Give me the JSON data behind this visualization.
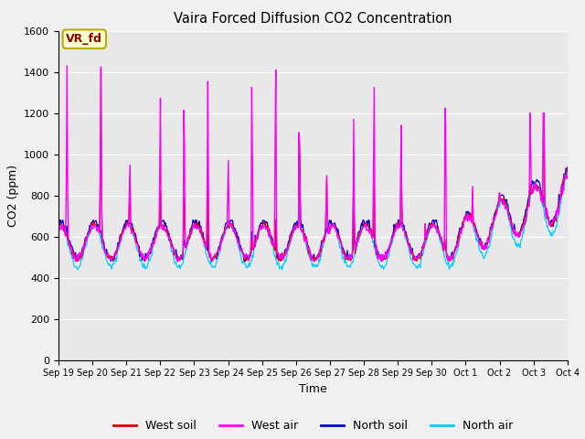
{
  "title": "Vaira Forced Diffusion CO2 Concentration",
  "xlabel": "Time",
  "ylabel": "CO2 (ppm)",
  "ylim": [
    0,
    1600
  ],
  "yticks": [
    0,
    200,
    400,
    600,
    800,
    1000,
    1200,
    1400,
    1600
  ],
  "legend_label": "VR_fd",
  "legend_bg": "#ffffcc",
  "legend_border": "#bbaa00",
  "west_soil_color": "#dd0000",
  "west_air_color": "#ff00ff",
  "north_soil_color": "#0000cc",
  "north_air_color": "#00ccff",
  "bg_color": "#e8e8e8",
  "fig_bg_color": "#f0f0f0",
  "x_tick_labels": [
    "Sep 19",
    "Sep 20",
    "Sep 21",
    "Sep 22",
    "Sep 23",
    "Sep 24",
    "Sep 25",
    "Sep 26",
    "Sep 27",
    "Sep 28",
    "Sep 29",
    "Sep 30",
    "Oct 1",
    "Oct 2",
    "Oct 3",
    "Oct 4"
  ],
  "n_days": 15,
  "n_points": 720,
  "base_mean": 575,
  "base_amp": 95,
  "base_min": 420,
  "base_max": 680,
  "spike_positions": [
    0.25,
    1.25,
    2.1,
    3.0,
    3.7,
    4.4,
    5.0,
    5.7,
    6.4,
    7.1,
    7.9,
    8.7,
    9.3,
    10.1,
    10.8,
    11.4,
    12.2,
    13.0,
    13.9,
    14.3
  ],
  "spike_wa": [
    1430,
    1430,
    1010,
    1300,
    1300,
    1360,
    1030,
    1360,
    1450,
    1170,
    950,
    1170,
    1360,
    1150,
    700,
    1360,
    800,
    700,
    1090,
    1150
  ],
  "spike_ws": [
    600,
    1420,
    950,
    840,
    840,
    980,
    650,
    600,
    700,
    1170,
    940,
    1000,
    860,
    1150,
    650,
    650,
    780,
    700,
    700,
    1140
  ],
  "spike_ns": [
    650,
    630,
    610,
    620,
    620,
    610,
    620,
    640,
    640,
    1170,
    660,
    960,
    640,
    640,
    610,
    610,
    680,
    630,
    630,
    640
  ],
  "spike_na": [
    600,
    450,
    430,
    430,
    430,
    430,
    430,
    440,
    440,
    820,
    440,
    490,
    440,
    440,
    430,
    430,
    490,
    460,
    460,
    460
  ]
}
